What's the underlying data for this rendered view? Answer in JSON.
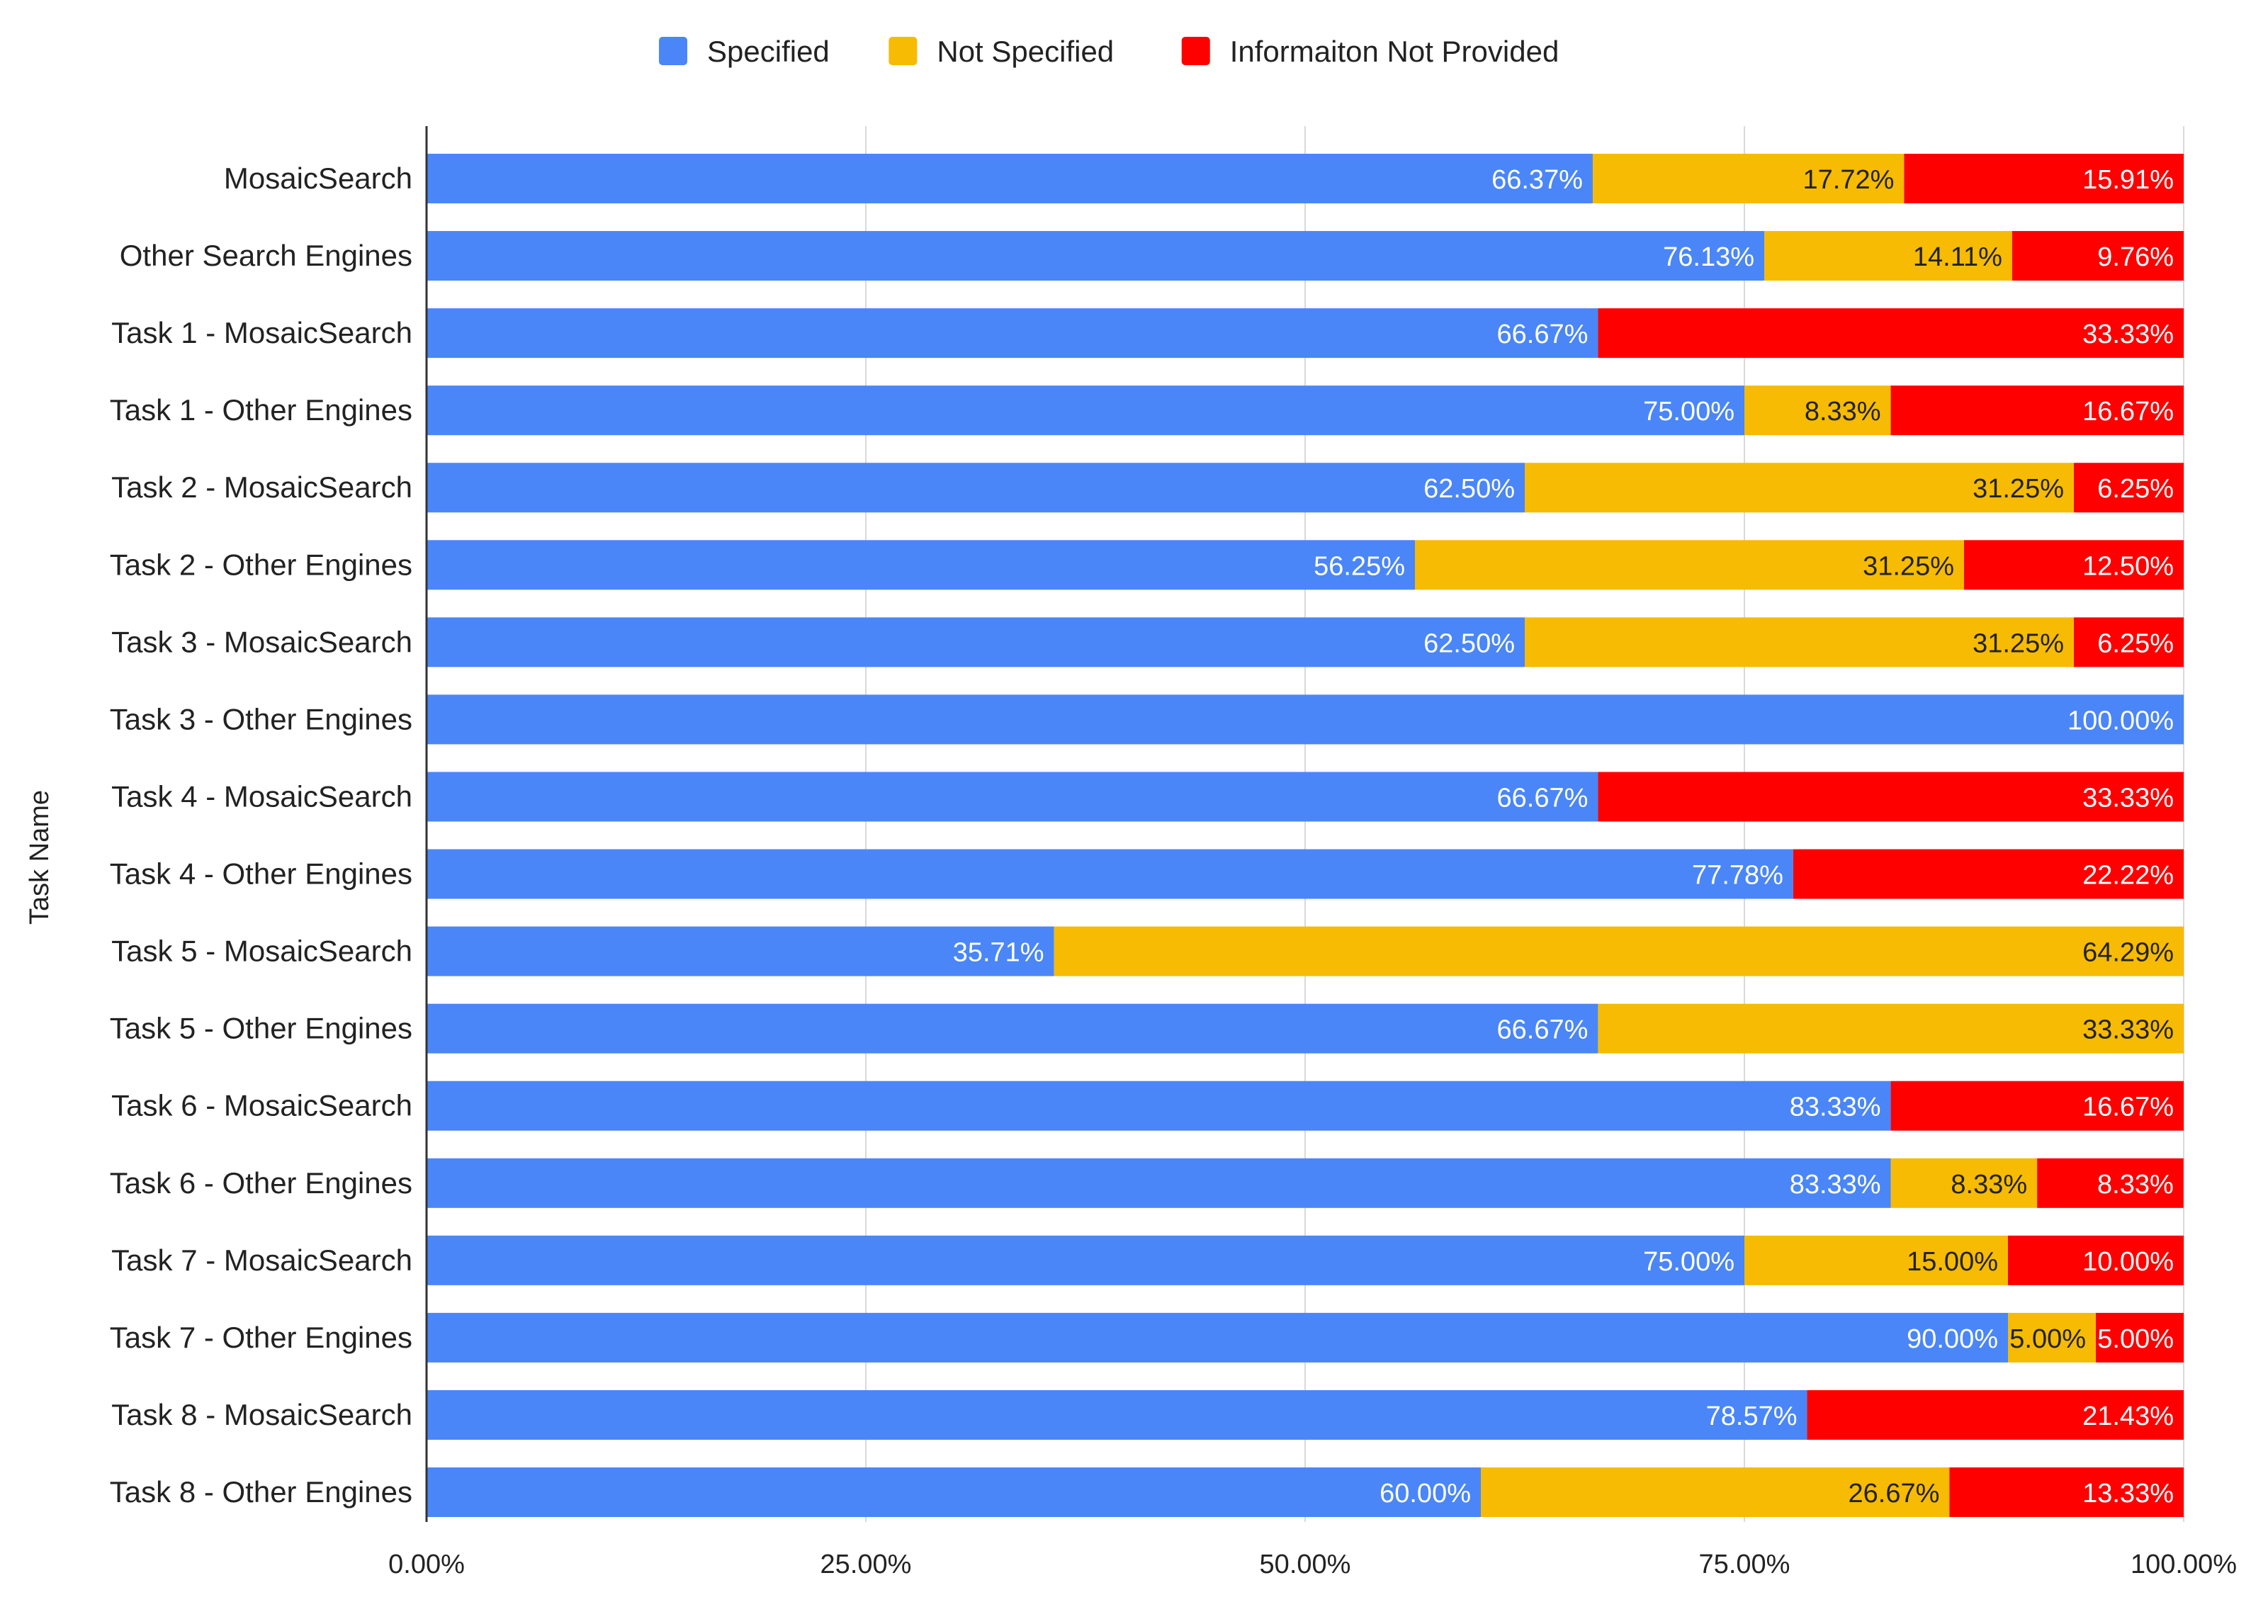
{
  "chart_data": {
    "type": "bar",
    "orientation": "horizontal",
    "stacked": "percent",
    "title": "",
    "xlabel": "",
    "ylabel": "Task Name",
    "xlim": [
      0,
      100
    ],
    "x_ticks": [
      "0.00%",
      "25.00%",
      "50.00%",
      "75.00%",
      "100.00%"
    ],
    "grid": true,
    "legend_position": "top",
    "categories": [
      "MosaicSearch",
      "Other Search Engines",
      "Task 1 - MosaicSearch",
      "Task 1 - Other Engines",
      "Task 2 - MosaicSearch",
      "Task 2 - Other Engines",
      "Task 3 - MosaicSearch",
      "Task 3 - Other Engines",
      "Task 4 - MosaicSearch",
      "Task 4 - Other Engines",
      "Task 5 - MosaicSearch",
      "Task 5 - Other Engines",
      "Task 6 - MosaicSearch",
      "Task 6 - Other Engines",
      "Task 7 - MosaicSearch",
      "Task 7 - Other Engines",
      "Task 8 - MosaicSearch",
      "Task 8 - Other Engines"
    ],
    "series": [
      {
        "name": "Specified",
        "color": "#4a86f7",
        "label_color": "#ffffff",
        "values": [
          66.37,
          76.13,
          66.67,
          75.0,
          62.5,
          56.25,
          62.5,
          100.0,
          66.67,
          77.78,
          35.71,
          66.67,
          83.33,
          83.33,
          75.0,
          90.0,
          78.57,
          60.0
        ],
        "labels": [
          "66.37%",
          "76.13%",
          "66.67%",
          "75.00%",
          "62.50%",
          "56.25%",
          "62.50%",
          "100.00%",
          "66.67%",
          "77.78%",
          "35.71%",
          "66.67%",
          "83.33%",
          "83.33%",
          "75.00%",
          "90.00%",
          "78.57%",
          "60.00%"
        ]
      },
      {
        "name": "Not Specified",
        "color": "#f6bb02",
        "label_color": "#222222",
        "values": [
          17.72,
          14.11,
          0,
          8.33,
          31.25,
          31.25,
          31.25,
          0,
          0,
          0,
          64.29,
          33.33,
          0,
          8.33,
          15.0,
          5.0,
          0,
          26.67
        ],
        "labels": [
          "17.72%",
          "14.11%",
          "",
          "8.33%",
          "31.25%",
          "31.25%",
          "31.25%",
          "",
          "",
          "",
          "64.29%",
          "33.33%",
          "",
          "8.33%",
          "15.00%",
          "5.00%",
          "",
          "26.67%"
        ]
      },
      {
        "name": "Informaiton Not Provided",
        "color": "#fe0000",
        "label_color": "#ffffff",
        "values": [
          15.91,
          9.76,
          33.33,
          16.67,
          6.25,
          12.5,
          6.25,
          0,
          33.33,
          22.22,
          0,
          0,
          16.67,
          8.33,
          10.0,
          5.0,
          21.43,
          13.33
        ],
        "labels": [
          "15.91%",
          "9.76%",
          "33.33%",
          "16.67%",
          "6.25%",
          "12.50%",
          "6.25%",
          "",
          "33.33%",
          "22.22%",
          "",
          "",
          "16.67%",
          "8.33%",
          "10.00%",
          "5.00%",
          "21.43%",
          "13.33%"
        ]
      }
    ]
  }
}
